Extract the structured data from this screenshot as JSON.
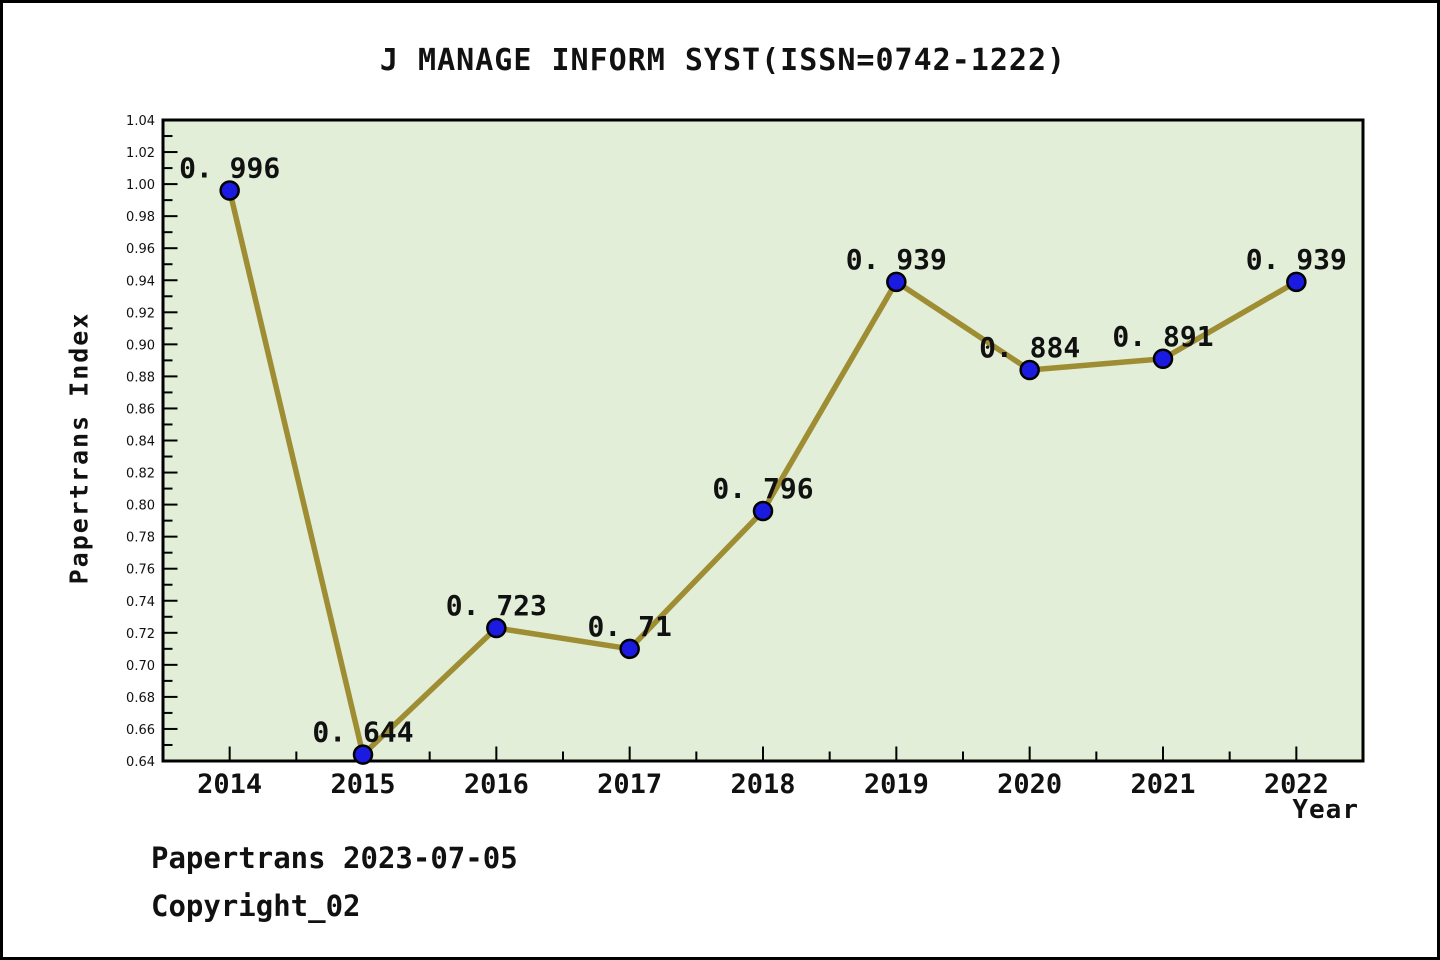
{
  "page": {
    "footer_line1": "Papertrans 2023-07-05",
    "footer_line2": "Copyright_02"
  },
  "chart_data": {
    "type": "line",
    "title": "J MANAGE INFORM SYST(ISSN=0742-1222)",
    "xlabel": "Year",
    "ylabel": "Papertrans Index",
    "x": [
      2014,
      2015,
      2016,
      2017,
      2018,
      2019,
      2020,
      2021,
      2022
    ],
    "values": [
      0.996,
      0.644,
      0.723,
      0.71,
      0.796,
      0.939,
      0.884,
      0.891,
      0.939
    ],
    "point_labels": [
      "0. 996",
      "0. 644",
      "0. 723",
      "0. 71",
      "0. 796",
      "0. 939",
      "0. 884",
      "0. 891",
      "0. 939"
    ],
    "xtick_labels": [
      "2014",
      "2015",
      "2016",
      "2017",
      "2018",
      "2019",
      "2020",
      "2021",
      "2022"
    ],
    "ytick_labels": [
      "0.64",
      "0.66",
      "0.68",
      "0.70",
      "0.72",
      "0.74",
      "0.76",
      "0.78",
      "0.80",
      "0.82",
      "0.84",
      "0.86",
      "0.88",
      "0.90",
      "0.92",
      "0.94",
      "0.96",
      "0.98",
      "1.00",
      "1.02",
      "1.04"
    ],
    "ylim": [
      0.64,
      1.04
    ],
    "xlim": [
      2013.5,
      2022.5
    ],
    "ytick_major_step": 0.02,
    "ytick_minor_step": 0.01,
    "xtick_minor_step": 0.5,
    "grid": "off",
    "legend": "none",
    "colors": {
      "plot_bg": "#e2eed8",
      "line": "#9e8d33",
      "marker_fill": "#1a1ae0",
      "marker_edge": "#000000",
      "axis": "#000000",
      "text": "#111111"
    }
  }
}
